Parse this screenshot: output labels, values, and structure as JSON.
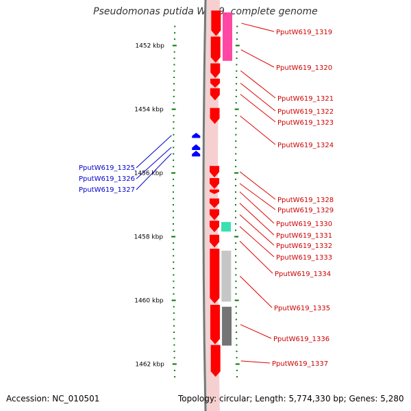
{
  "title": "Pseudomonas putida W619, complete genome",
  "footer": {
    "accession": "Accession: NC_010501",
    "summary": "Topology: circular; Length: 5,774,330 bp; Genes: 5,280"
  },
  "colors": {
    "forward_gene": "#ff0000",
    "reverse_gene": "#0000ff",
    "forward_label": "#cc0000",
    "reverse_label": "#0000cc",
    "tick": "#007700",
    "magenta_feature": "#ff3399",
    "teal_feature": "#22ddaa",
    "light_gray_feature": "#c0c0c0",
    "dark_gray_feature": "#666666"
  },
  "scale_labels": [
    {
      "label": "1452 kbp",
      "kbp": 1452
    },
    {
      "label": "1454 kbp",
      "kbp": 1454
    },
    {
      "label": "1456 kbp",
      "kbp": 1456
    },
    {
      "label": "1458 kbp",
      "kbp": 1458
    },
    {
      "label": "1460 kbp",
      "kbp": 1460
    },
    {
      "label": "1462 kbp",
      "kbp": 1462
    }
  ],
  "forward_genes": [
    {
      "label": "PputW619_1319",
      "start": 1450.9,
      "end": 1451.7
    },
    {
      "label": "PputW619_1320",
      "start": 1451.72,
      "end": 1452.54
    },
    {
      "label": "PputW619_1321",
      "start": 1452.56,
      "end": 1453.02
    },
    {
      "label": "PputW619_1322",
      "start": 1453.04,
      "end": 1453.32
    },
    {
      "label": "PputW619_1323",
      "start": 1453.34,
      "end": 1453.72
    },
    {
      "label": "PputW619_1324",
      "start": 1453.96,
      "end": 1454.46
    },
    {
      "label": "PputW619_1328",
      "start": 1455.78,
      "end": 1456.14
    },
    {
      "label": "PputW619_1329",
      "start": 1456.16,
      "end": 1456.5
    },
    {
      "label": "PputW619_1330",
      "start": 1456.52,
      "end": 1456.66
    },
    {
      "label": "PputW619_1331",
      "start": 1456.8,
      "end": 1457.1
    },
    {
      "label": "PputW619_1332",
      "start": 1457.14,
      "end": 1457.48
    },
    {
      "label": "PputW619_1333",
      "start": 1457.5,
      "end": 1457.86
    },
    {
      "label": "PputW619_1334",
      "start": 1457.94,
      "end": 1458.34
    },
    {
      "label": "PputW619_1335",
      "start": 1458.38,
      "end": 1460.1
    },
    {
      "label": "PputW619_1336",
      "start": 1460.14,
      "end": 1461.38
    },
    {
      "label": "PputW619_1337",
      "start": 1461.4,
      "end": 1462.4
    }
  ],
  "reverse_genes": [
    {
      "label": "PputW619_1325",
      "start": 1454.74,
      "end": 1454.9
    },
    {
      "label": "PputW619_1326",
      "start": 1455.1,
      "end": 1455.28
    },
    {
      "label": "PputW619_1327",
      "start": 1455.3,
      "end": 1455.48
    }
  ],
  "features": [
    {
      "name": "magenta-feature",
      "color": "#ff3399",
      "start": 1450.96,
      "end": 1452.48
    },
    {
      "name": "teal-feature",
      "color": "#22ddaa",
      "start": 1457.54,
      "end": 1457.84
    },
    {
      "name": "light-gray-feature",
      "color": "#c0c0c0",
      "start": 1458.44,
      "end": 1460.04
    },
    {
      "name": "dark-gray-feature",
      "color": "#666666",
      "start": 1460.2,
      "end": 1461.42
    }
  ]
}
